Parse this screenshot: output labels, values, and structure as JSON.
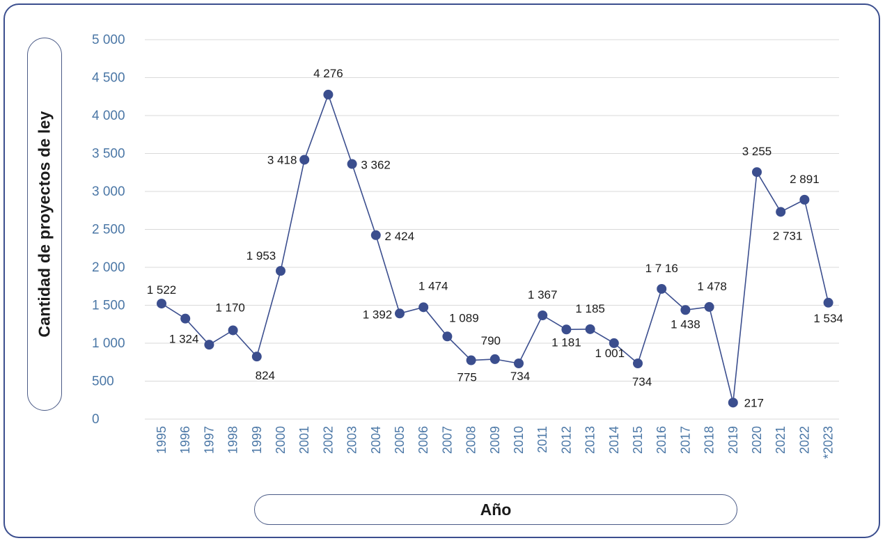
{
  "chart_data": {
    "type": "line",
    "xlabel": "Año",
    "ylabel": "Cantidad de proyectos de ley",
    "ylim": [
      0,
      5000
    ],
    "yticks": [
      "0",
      "500",
      "1 000",
      "1 500",
      "2 000",
      "2 500",
      "3 000",
      "3 500",
      "4 000",
      "4 500",
      "5 000"
    ],
    "ytick_values": [
      0,
      500,
      1000,
      1500,
      2000,
      2500,
      3000,
      3500,
      4000,
      4500,
      5000
    ],
    "grid": true,
    "x": [
      "1995",
      "1996",
      "1997",
      "1998",
      "1999",
      "2000",
      "2001",
      "2002",
      "2003",
      "2004",
      "2005",
      "2006",
      "2007",
      "2008",
      "2009",
      "2010",
      "2011",
      "2012",
      "2013",
      "2014",
      "2015",
      "2016",
      "2017",
      "2018",
      "2019",
      "2020",
      "2021",
      "2022",
      "*2023"
    ],
    "values": [
      1522,
      1324,
      980,
      1170,
      824,
      1953,
      3418,
      4276,
      3362,
      2424,
      1392,
      1474,
      1089,
      775,
      790,
      734,
      1367,
      1181,
      1185,
      1001,
      734,
      1716,
      1438,
      1478,
      217,
      3255,
      2731,
      2891,
      1534
    ],
    "labels": [
      "1 522",
      "1 324",
      "",
      "1 170",
      "824",
      "1 953",
      "3 418",
      "4 276",
      "3 362",
      "2 424",
      "1 392",
      "1 474",
      "1 089",
      "775",
      "790",
      "734",
      "1 367",
      "1 181",
      "1 185",
      "1 001",
      "734",
      "1 7 16",
      "1 438",
      "1 478",
      "217",
      "3 255",
      "2 731",
      "2 891",
      "1 534"
    ],
    "colors": {
      "line": "#3b4e8e",
      "marker": "#3b4e8e",
      "grid": "#d9d9d9",
      "tick": "#4b77a6"
    }
  }
}
